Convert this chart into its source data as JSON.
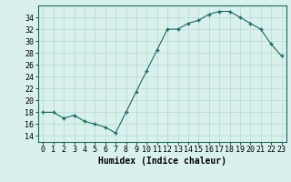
{
  "x": [
    0,
    1,
    2,
    3,
    4,
    5,
    6,
    7,
    8,
    9,
    10,
    11,
    12,
    13,
    14,
    15,
    16,
    17,
    18,
    19,
    20,
    21,
    22,
    23
  ],
  "y": [
    18,
    18,
    17,
    17.5,
    16.5,
    16,
    15.5,
    14.5,
    18,
    21.5,
    25,
    28.5,
    32,
    32,
    33,
    33.5,
    34.5,
    35,
    35,
    34,
    33,
    32,
    29.5,
    27.5
  ],
  "xlabel": "Humidex (Indice chaleur)",
  "ylim": [
    13,
    36
  ],
  "yticks": [
    14,
    16,
    18,
    20,
    22,
    24,
    26,
    28,
    30,
    32,
    34
  ],
  "xticks": [
    0,
    1,
    2,
    3,
    4,
    5,
    6,
    7,
    8,
    9,
    10,
    11,
    12,
    13,
    14,
    15,
    16,
    17,
    18,
    19,
    20,
    21,
    22,
    23
  ],
  "line_color": "#1a6b5a",
  "marker_color": "#1a6b5a",
  "bg_color": "#d8f0ee",
  "grid_color": "#b8d8d4",
  "xlabel_fontsize": 7,
  "tick_fontsize": 6
}
